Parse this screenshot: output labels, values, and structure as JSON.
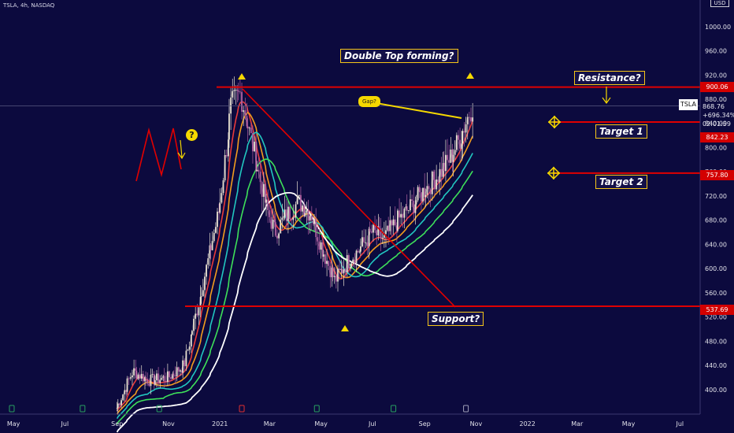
{
  "header": {
    "ticker_info": "TSLA, 4h, NASDAQ",
    "currency_label": "USD"
  },
  "annotations": {
    "double_top": "Double Top forming?",
    "resistance": "Resistance?",
    "target1": "Target 1",
    "target2": "Target 2",
    "support": "Support?",
    "gap_bubble": "Gap?",
    "question_mark": "?"
  },
  "last_price": {
    "symbol": "TSLA",
    "price": "868.76",
    "change": "+696.34%",
    "countdown": "02:01:59"
  },
  "price_tags": [
    {
      "label": "900.06",
      "value": 900.06
    },
    {
      "label": "842.23",
      "value": 842.23
    },
    {
      "label": "757.80",
      "value": 757.8
    },
    {
      "label": "537.69",
      "value": 537.69
    }
  ],
  "colors": {
    "background": "#0c0a3e",
    "level_line": "#e00000",
    "annotation_border": "#f5c518",
    "accent_yellow": "#f5d800"
  },
  "chart_data": {
    "type": "line",
    "title": "",
    "xlabel": "",
    "ylabel": "",
    "x_ticks": [
      "May",
      "Jul",
      "Sep",
      "Nov",
      "2021",
      "Mar",
      "May",
      "Jul",
      "Sep",
      "Nov",
      "2022",
      "Mar",
      "May",
      "Jul"
    ],
    "y_ticks": [
      400,
      440,
      480,
      520,
      560,
      600,
      640,
      680,
      720,
      760,
      800,
      840,
      880,
      920,
      960,
      1000
    ],
    "ylim": [
      362,
      1044
    ],
    "x": [
      "2020-09-01",
      "2020-09-20",
      "2020-10-10",
      "2020-11-01",
      "2020-11-20",
      "2020-12-10",
      "2021-01-01",
      "2021-01-15",
      "2021-01-26",
      "2021-02-10",
      "2021-02-25",
      "2021-03-08",
      "2021-03-20",
      "2021-04-05",
      "2021-04-20",
      "2021-05-01",
      "2021-05-18",
      "2021-06-01",
      "2021-06-15",
      "2021-07-01",
      "2021-07-15",
      "2021-08-01",
      "2021-08-15",
      "2021-09-01",
      "2021-09-15",
      "2021-10-01",
      "2021-10-15",
      "2021-10-25",
      "2021-10-28"
    ],
    "series": [
      {
        "values": [
          370,
          430,
          415,
          420,
          440,
          560,
          700,
          870,
          890,
          800,
          705,
          660,
          685,
          710,
          690,
          640,
          580,
          610,
          630,
          660,
          650,
          680,
          700,
          730,
          750,
          780,
          820,
          860,
          869
        ]
      }
    ],
    "levels": [
      {
        "name": "Resistance?",
        "value": 900.06
      },
      {
        "name": "Target 1",
        "value": 842.23
      },
      {
        "name": "Target 2",
        "value": 757.8
      },
      {
        "name": "Support?",
        "value": 537.69
      }
    ],
    "grid": false,
    "legend": "none"
  }
}
